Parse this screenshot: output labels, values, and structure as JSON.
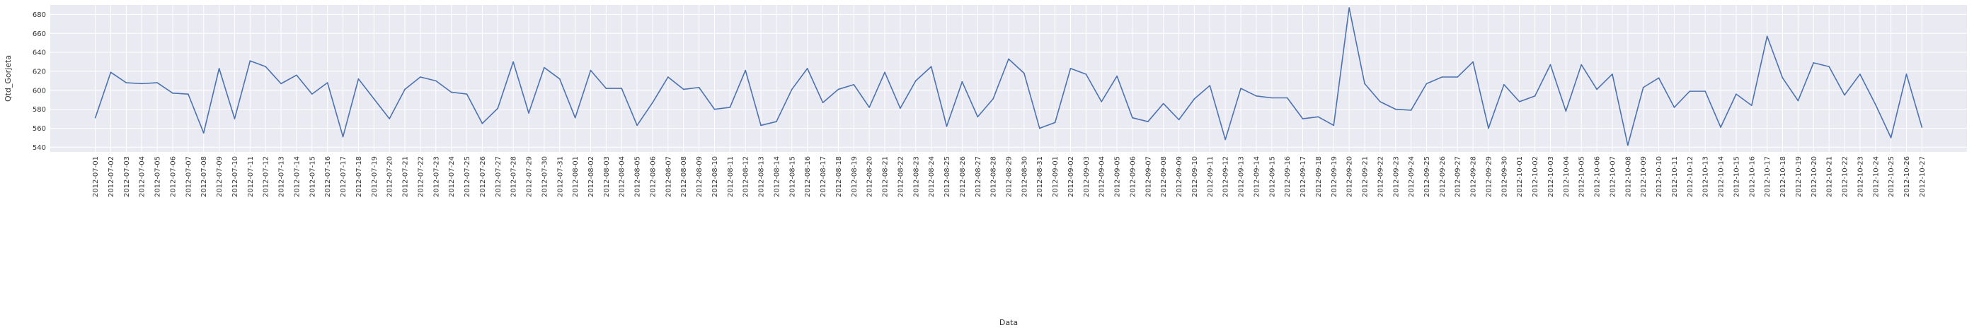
{
  "chart_data": {
    "type": "line",
    "title": "",
    "xlabel": "Data",
    "ylabel": "Qtd_Gorjeta",
    "ylim": [
      535,
      690
    ],
    "yticks": [
      540,
      560,
      580,
      600,
      620,
      640,
      660,
      680
    ],
    "grid": true,
    "legend": "none",
    "colors": {
      "line": "#4c72b0",
      "plot_bg": "#eaeaf2",
      "grid": "#ffffff",
      "page_bg": "#ffffff"
    },
    "x": [
      "2012-07-01",
      "2012-07-02",
      "2012-07-03",
      "2012-07-04",
      "2012-07-05",
      "2012-07-06",
      "2012-07-07",
      "2012-07-08",
      "2012-07-09",
      "2012-07-10",
      "2012-07-11",
      "2012-07-12",
      "2012-07-13",
      "2012-07-14",
      "2012-07-15",
      "2012-07-16",
      "2012-07-17",
      "2012-07-18",
      "2012-07-19",
      "2012-07-20",
      "2012-07-21",
      "2012-07-22",
      "2012-07-23",
      "2012-07-24",
      "2012-07-25",
      "2012-07-26",
      "2012-07-27",
      "2012-07-28",
      "2012-07-29",
      "2012-07-30",
      "2012-07-31",
      "2012-08-01",
      "2012-08-02",
      "2012-08-03",
      "2012-08-04",
      "2012-08-05",
      "2012-08-06",
      "2012-08-07",
      "2012-08-08",
      "2012-08-09",
      "2012-08-10",
      "2012-08-11",
      "2012-08-12",
      "2012-08-13",
      "2012-08-14",
      "2012-08-15",
      "2012-08-16",
      "2012-08-17",
      "2012-08-18",
      "2012-08-19",
      "2012-08-20",
      "2012-08-21",
      "2012-08-22",
      "2012-08-23",
      "2012-08-24",
      "2012-08-25",
      "2012-08-26",
      "2012-08-27",
      "2012-08-28",
      "2012-08-29",
      "2012-08-30",
      "2012-08-31",
      "2012-09-01",
      "2012-09-02",
      "2012-09-03",
      "2012-09-04",
      "2012-09-05",
      "2012-09-06",
      "2012-09-07",
      "2012-09-08",
      "2012-09-09",
      "2012-09-10",
      "2012-09-11",
      "2012-09-12",
      "2012-09-13",
      "2012-09-14",
      "2012-09-15",
      "2012-09-16",
      "2012-09-17",
      "2012-09-18",
      "2012-09-19",
      "2012-09-20",
      "2012-09-21",
      "2012-09-22",
      "2012-09-23",
      "2012-09-24",
      "2012-09-25",
      "2012-09-26",
      "2012-09-27",
      "2012-09-28",
      "2012-09-29",
      "2012-09-30",
      "2012-10-01",
      "2012-10-02",
      "2012-10-03",
      "2012-10-04",
      "2012-10-05",
      "2012-10-06",
      "2012-10-07",
      "2012-10-08",
      "2012-10-09",
      "2012-10-10",
      "2012-10-11",
      "2012-10-12",
      "2012-10-13",
      "2012-10-14",
      "2012-10-15",
      "2012-10-16",
      "2012-10-17",
      "2012-10-18",
      "2012-10-19",
      "2012-10-20",
      "2012-10-21",
      "2012-10-22",
      "2012-10-23",
      "2012-10-24",
      "2012-10-25",
      "2012-10-26",
      "2012-10-27"
    ],
    "series": [
      {
        "values": [
          571,
          619,
          608,
          607,
          608,
          597,
          596,
          555,
          623,
          570,
          631,
          625,
          607,
          616,
          596,
          608,
          551,
          612,
          591,
          570,
          601,
          614,
          610,
          598,
          596,
          565,
          581,
          630,
          576,
          624,
          612,
          571,
          621,
          602,
          602,
          563,
          587,
          614,
          601,
          603,
          580,
          582,
          621,
          563,
          567,
          601,
          623,
          587,
          601,
          606,
          582,
          619,
          581,
          610,
          625,
          562,
          609,
          572,
          591,
          633,
          618,
          560,
          566,
          623,
          617,
          588,
          615,
          571,
          567,
          586,
          569,
          591,
          605,
          548,
          602,
          594,
          592,
          592,
          570,
          572,
          563,
          687,
          607,
          588,
          580,
          579,
          607,
          614,
          614,
          630,
          560,
          606,
          588,
          594,
          627,
          578,
          627,
          601,
          617,
          542,
          603,
          613,
          582,
          599,
          599,
          561,
          596,
          584,
          657,
          613,
          589,
          629,
          625,
          595,
          617,
          585,
          550,
          617,
          561
        ]
      }
    ]
  }
}
